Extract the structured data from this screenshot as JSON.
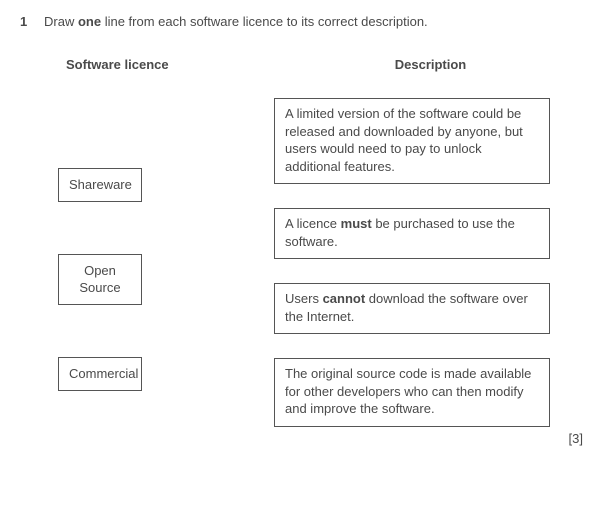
{
  "question": {
    "number": "1",
    "text_pre": "Draw ",
    "text_bold": "one",
    "text_post": " line from each software licence to its correct description."
  },
  "headers": {
    "left": "Software licence",
    "right": "Description"
  },
  "licences": [
    {
      "label": "Shareware"
    },
    {
      "label": "Open\nSource"
    },
    {
      "label": "Commercial"
    }
  ],
  "descriptions": [
    {
      "text_pre": "A limited version of the software could be released and downloaded by anyone, but users would need to pay to unlock additional features.",
      "bold": "",
      "text_post": ""
    },
    {
      "text_pre": "A licence ",
      "bold": "must",
      "text_post": " be purchased to use the software."
    },
    {
      "text_pre": "Users ",
      "bold": "cannot",
      "text_post": " download the software over the Internet."
    },
    {
      "text_pre": "The original source code is made available for other developers who can then modify and improve the software.",
      "bold": "",
      "text_post": ""
    }
  ],
  "marks": "[3]"
}
